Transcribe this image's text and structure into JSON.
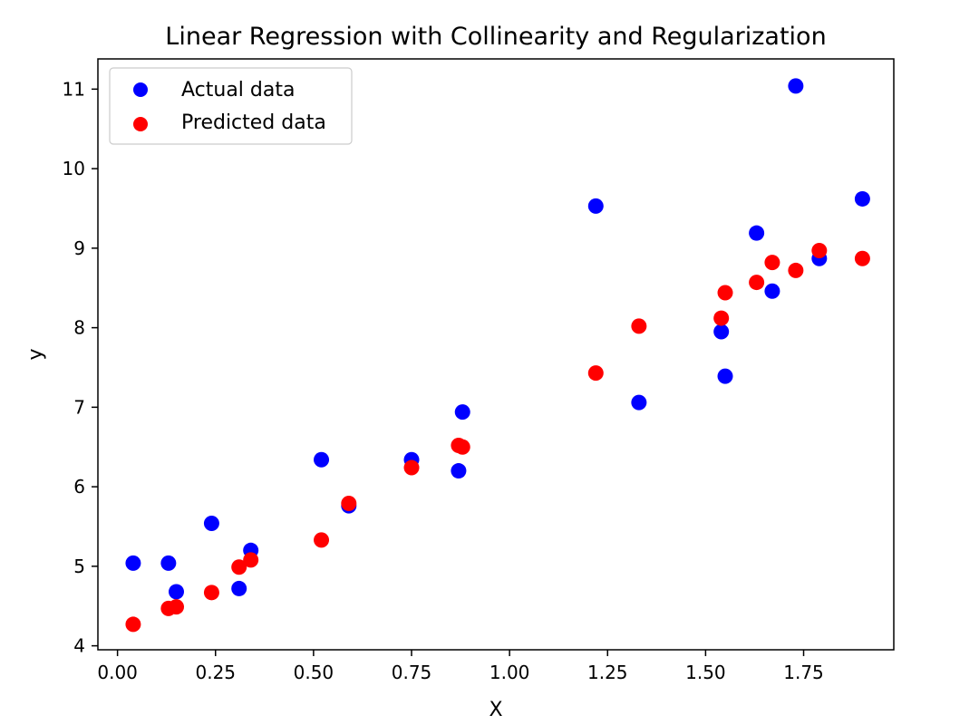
{
  "chart_data": {
    "type": "scatter",
    "title": "Linear Regression with Collinearity and Regularization",
    "xlabel": "X",
    "ylabel": "y",
    "xlim": [
      -0.05,
      1.98
    ],
    "ylim": [
      3.95,
      11.38
    ],
    "grid": false,
    "legend_position": "top-left",
    "x_ticks": [
      0.0,
      0.25,
      0.5,
      0.75,
      1.0,
      1.25,
      1.5,
      1.75
    ],
    "x_tick_labels": [
      "0.00",
      "0.25",
      "0.50",
      "0.75",
      "1.00",
      "1.25",
      "1.50",
      "1.75"
    ],
    "y_ticks": [
      4,
      5,
      6,
      7,
      8,
      9,
      10,
      11
    ],
    "y_tick_labels": [
      "4",
      "5",
      "6",
      "7",
      "8",
      "9",
      "10",
      "11"
    ],
    "series": [
      {
        "name": "Actual data",
        "color": "#0000ff",
        "x": [
          0.04,
          0.13,
          0.15,
          0.24,
          0.31,
          0.34,
          0.52,
          0.59,
          0.75,
          0.87,
          0.88,
          1.22,
          1.33,
          1.54,
          1.55,
          1.63,
          1.67,
          1.73,
          1.79,
          1.9
        ],
        "y": [
          5.04,
          5.04,
          4.68,
          5.54,
          4.72,
          5.2,
          6.34,
          5.76,
          6.34,
          6.2,
          6.94,
          9.53,
          7.06,
          7.95,
          7.39,
          9.19,
          8.46,
          11.04,
          8.87,
          9.62
        ]
      },
      {
        "name": "Predicted data",
        "color": "#ff0000",
        "x": [
          0.04,
          0.13,
          0.15,
          0.24,
          0.31,
          0.34,
          0.52,
          0.59,
          0.75,
          0.87,
          0.88,
          1.22,
          1.33,
          1.54,
          1.55,
          1.63,
          1.67,
          1.73,
          1.79,
          1.9
        ],
        "y": [
          4.27,
          4.47,
          4.49,
          4.67,
          4.99,
          5.08,
          5.33,
          5.79,
          6.24,
          6.52,
          6.5,
          7.43,
          8.02,
          8.12,
          8.44,
          8.57,
          8.82,
          8.72,
          8.97,
          8.87
        ]
      }
    ]
  }
}
